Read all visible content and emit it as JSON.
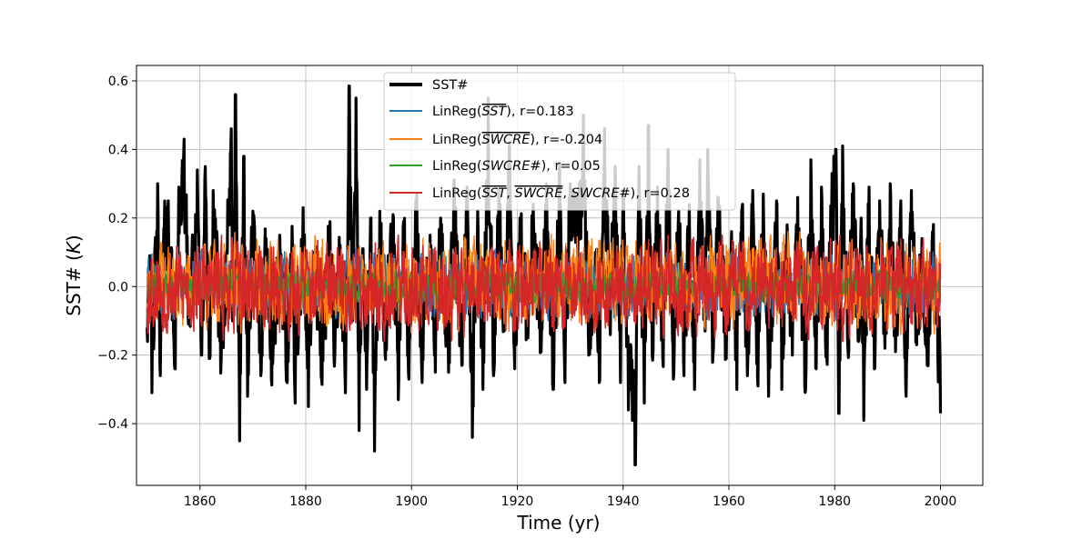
{
  "chart_data": {
    "type": "line",
    "title": "",
    "xlabel": "Time (yr)",
    "ylabel": "SST# (K)",
    "xlim": [
      1848,
      2008
    ],
    "ylim": [
      -0.58,
      0.645
    ],
    "xticks": [
      1860,
      1880,
      1900,
      1920,
      1940,
      1960,
      1980,
      2000
    ],
    "yticks": [
      -0.4,
      -0.2,
      0.0,
      0.2,
      0.4,
      0.6
    ],
    "ytick_labels": [
      "−0.4",
      "−0.2",
      "0.0",
      "0.2",
      "0.4",
      "0.6"
    ],
    "grid": true,
    "legend_position": "top-center",
    "time_start": 1850,
    "time_end": 2000,
    "samples_per_year": 12,
    "series": [
      {
        "name": "SST#",
        "color": "#000000",
        "label": "SST#",
        "observed_min": -0.52,
        "observed_max": 0.585,
        "correlation": null,
        "anchor_points": [
          [
            1850.0,
            -0.12
          ],
          [
            1850.5,
            0.09
          ],
          [
            1850.9,
            -0.31
          ],
          [
            1852.0,
            0.3
          ],
          [
            1852.5,
            -0.26
          ],
          [
            1853.2,
            0.17
          ],
          [
            1854.0,
            0.25
          ],
          [
            1855.3,
            -0.24
          ],
          [
            1856.0,
            0.29
          ],
          [
            1857.0,
            0.43
          ],
          [
            1858.0,
            -0.1
          ],
          [
            1859.5,
            0.34
          ],
          [
            1860.3,
            -0.2
          ],
          [
            1861.0,
            0.35
          ],
          [
            1861.8,
            -0.21
          ],
          [
            1862.5,
            0.28
          ],
          [
            1864.0,
            -0.22
          ],
          [
            1865.0,
            0.09
          ],
          [
            1865.9,
            0.46
          ],
          [
            1866.2,
            -0.1
          ],
          [
            1866.7,
            0.56
          ],
          [
            1867.5,
            -0.45
          ],
          [
            1868.3,
            0.38
          ],
          [
            1869.0,
            -0.32
          ],
          [
            1870.0,
            0.22
          ],
          [
            1871.5,
            -0.26
          ],
          [
            1872.5,
            0.14
          ],
          [
            1873.5,
            -0.27
          ],
          [
            1875.0,
            0.11
          ],
          [
            1876.5,
            -0.28
          ],
          [
            1877.5,
            0.11
          ],
          [
            1878.0,
            -0.34
          ],
          [
            1879.5,
            0.23
          ],
          [
            1880.5,
            -0.35
          ],
          [
            1881.5,
            0.1
          ],
          [
            1883.0,
            -0.27
          ],
          [
            1884.5,
            0.15
          ],
          [
            1885.5,
            -0.2
          ],
          [
            1886.5,
            0.12
          ],
          [
            1887.5,
            -0.31
          ],
          [
            1888.2,
            0.585
          ],
          [
            1888.8,
            -0.1
          ],
          [
            1889.5,
            0.55
          ],
          [
            1890.1,
            -0.42
          ],
          [
            1890.8,
            0.11
          ],
          [
            1891.5,
            -0.3
          ],
          [
            1892.3,
            0.2
          ],
          [
            1893.0,
            -0.48
          ],
          [
            1894.0,
            0.22
          ],
          [
            1895.0,
            -0.2
          ],
          [
            1896.5,
            0.21
          ],
          [
            1897.5,
            -0.33
          ],
          [
            1898.5,
            0.19
          ],
          [
            1899.5,
            -0.27
          ],
          [
            1901.0,
            0.27
          ],
          [
            1902.0,
            -0.28
          ],
          [
            1903.5,
            0.15
          ],
          [
            1904.5,
            -0.25
          ],
          [
            1905.5,
            0.2
          ],
          [
            1907.0,
            -0.25
          ],
          [
            1908.0,
            0.31
          ],
          [
            1909.5,
            -0.23
          ],
          [
            1910.5,
            0.29
          ],
          [
            1911.5,
            -0.44
          ],
          [
            1912.5,
            0.22
          ],
          [
            1913.5,
            -0.3
          ],
          [
            1914.5,
            0.55
          ],
          [
            1915.5,
            -0.26
          ],
          [
            1916.5,
            0.28
          ],
          [
            1917.5,
            -0.13
          ],
          [
            1918.5,
            0.42
          ],
          [
            1919.5,
            -0.24
          ],
          [
            1920.5,
            0.2
          ],
          [
            1922.0,
            -0.15
          ],
          [
            1923.0,
            0.24
          ],
          [
            1924.5,
            -0.19
          ],
          [
            1925.5,
            0.3
          ],
          [
            1926.8,
            -0.3
          ],
          [
            1928.0,
            0.36
          ],
          [
            1929.0,
            -0.28
          ],
          [
            1930.0,
            0.3
          ],
          [
            1931.5,
            0.18
          ],
          [
            1932.5,
            0.5
          ],
          [
            1933.5,
            -0.2
          ],
          [
            1934.8,
            0.1
          ],
          [
            1935.5,
            -0.28
          ],
          [
            1936.5,
            0.46
          ],
          [
            1937.5,
            -0.1
          ],
          [
            1938.5,
            0.35
          ],
          [
            1939.5,
            -0.28
          ],
          [
            1940.0,
            0.28
          ],
          [
            1941.0,
            -0.36
          ],
          [
            1941.8,
            -0.39
          ],
          [
            1942.3,
            -0.52
          ],
          [
            1943.0,
            0.35
          ],
          [
            1944.0,
            -0.34
          ],
          [
            1944.8,
            0.47
          ],
          [
            1945.5,
            -0.2
          ],
          [
            1946.5,
            0.29
          ],
          [
            1947.5,
            -0.21
          ],
          [
            1948.5,
            0.4
          ],
          [
            1949.5,
            -0.27
          ],
          [
            1950.5,
            0.22
          ],
          [
            1951.5,
            -0.26
          ],
          [
            1952.5,
            0.24
          ],
          [
            1953.5,
            -0.3
          ],
          [
            1954.5,
            0.37
          ],
          [
            1955.5,
            -0.13
          ],
          [
            1956.0,
            0.4
          ],
          [
            1957.0,
            -0.2
          ],
          [
            1958.0,
            0.25
          ],
          [
            1959.5,
            -0.21
          ],
          [
            1960.5,
            0.16
          ],
          [
            1961.5,
            -0.3
          ],
          [
            1962.5,
            0.23
          ],
          [
            1963.5,
            -0.26
          ],
          [
            1964.5,
            0.28
          ],
          [
            1965.5,
            -0.29
          ],
          [
            1966.5,
            0.27
          ],
          [
            1967.5,
            -0.32
          ],
          [
            1969.0,
            0.25
          ],
          [
            1970.0,
            -0.3
          ],
          [
            1971.0,
            0.18
          ],
          [
            1972.0,
            -0.2
          ],
          [
            1973.0,
            0.26
          ],
          [
            1974.5,
            -0.3
          ],
          [
            1975.5,
            0.37
          ],
          [
            1976.5,
            -0.24
          ],
          [
            1977.5,
            0.29
          ],
          [
            1978.5,
            -0.2
          ],
          [
            1979.5,
            0.33
          ],
          [
            1980.2,
            0.4
          ],
          [
            1980.8,
            -0.37
          ],
          [
            1981.5,
            0.41
          ],
          [
            1982.5,
            -0.18
          ],
          [
            1983.5,
            0.3
          ],
          [
            1984.5,
            -0.16
          ],
          [
            1985.0,
            0.2
          ],
          [
            1985.5,
            -0.39
          ],
          [
            1986.5,
            0.29
          ],
          [
            1987.5,
            -0.24
          ],
          [
            1988.5,
            0.25
          ],
          [
            1989.5,
            -0.18
          ],
          [
            1990.5,
            0.3
          ],
          [
            1991.5,
            -0.19
          ],
          [
            1992.5,
            0.25
          ],
          [
            1993.5,
            -0.32
          ],
          [
            1994.5,
            0.28
          ],
          [
            1995.5,
            -0.17
          ],
          [
            1996.5,
            0.14
          ],
          [
            1997.5,
            -0.23
          ],
          [
            1998.5,
            0.16
          ],
          [
            1999.5,
            -0.2
          ],
          [
            2000.0,
            -0.37
          ]
        ]
      },
      {
        "name": "LinReg(SST-bar)",
        "color": "#1f77b4",
        "label": "LinReg(SST), r=0.183",
        "observed_min": -0.1,
        "observed_max": 0.11,
        "correlation": 0.183
      },
      {
        "name": "LinReg(SWCRE-bar)",
        "color": "#ff7f0e",
        "label": "LinReg(SWCRE), r=-0.204",
        "observed_min": -0.14,
        "observed_max": 0.16,
        "correlation": -0.204
      },
      {
        "name": "LinReg(SWCRE#)",
        "color": "#2ca02c",
        "label": "LinReg(SWCRE#), r=0.05",
        "observed_min": -0.05,
        "observed_max": 0.05,
        "correlation": 0.05
      },
      {
        "name": "LinReg(SST-bar, SWCRE-bar, SWCRE#)",
        "color": "#d62728",
        "label": "LinReg(SST, SWCRE, SWCRE#), r=0.28",
        "observed_min": -0.16,
        "observed_max": 0.15,
        "correlation": 0.28
      }
    ]
  },
  "legend": {
    "item0": {
      "text": "SST#"
    },
    "item1": {
      "prefix": "LinReg(",
      "v1": "SST",
      "suffix": "), r=0.183"
    },
    "item2": {
      "prefix": "LinReg(",
      "v1": "SWCRE",
      "suffix": "), r=-0.204"
    },
    "item3": {
      "prefix": "LinReg(",
      "v1": "SWCRE#",
      "suffix": "), r=0.05"
    },
    "item4": {
      "prefix": "LinReg(",
      "v1": "SST",
      "sep1": ", ",
      "v2": "SWCRE",
      "sep2": ", ",
      "v3": "SWCRE#",
      "suffix": "), r=0.28"
    }
  }
}
